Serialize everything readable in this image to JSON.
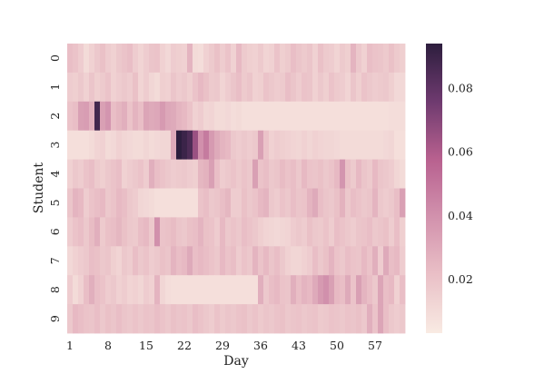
{
  "chart_data": {
    "type": "heatmap",
    "title": "",
    "xlabel": "Day",
    "ylabel": "Student",
    "x_tick_labels": [
      "1",
      "8",
      "15",
      "22",
      "29",
      "36",
      "43",
      "50",
      "57"
    ],
    "x_tick_days": [
      1,
      8,
      15,
      22,
      29,
      36,
      43,
      50,
      57
    ],
    "y_tick_labels": [
      "0",
      "1",
      "2",
      "3",
      "4",
      "5",
      "6",
      "7",
      "8",
      "9"
    ],
    "n_days": 62,
    "colorbar": {
      "tick_labels": [
        "0.02",
        "0.04",
        "0.06",
        "0.08"
      ],
      "tick_values": [
        0.02,
        0.04,
        0.06,
        0.08
      ],
      "range": [
        0.003,
        0.094
      ],
      "position": "right"
    },
    "color_low": "#f9ebe3",
    "color_mid": "#b8618f",
    "color_high": "#2d1e3e",
    "values": [
      [
        0.022,
        0.02,
        0.016,
        0.01,
        0.014,
        0.018,
        0.021,
        0.016,
        0.014,
        0.018,
        0.02,
        0.022,
        0.016,
        0.013,
        0.016,
        0.019,
        0.02,
        0.014,
        0.011,
        0.016,
        0.015,
        0.014,
        0.026,
        0.01,
        0.009,
        0.014,
        0.017,
        0.021,
        0.016,
        0.02,
        0.014,
        0.024,
        0.017,
        0.015,
        0.014,
        0.017,
        0.013,
        0.014,
        0.02,
        0.015,
        0.017,
        0.022,
        0.019,
        0.017,
        0.019,
        0.014,
        0.021,
        0.017,
        0.016,
        0.013,
        0.017,
        0.015,
        0.026,
        0.018,
        0.014,
        0.022,
        0.02,
        0.019,
        0.017,
        0.021,
        0.017,
        0.015
      ],
      [
        0.016,
        0.015,
        0.018,
        0.014,
        0.019,
        0.015,
        0.017,
        0.02,
        0.014,
        0.016,
        0.018,
        0.016,
        0.021,
        0.013,
        0.016,
        0.012,
        0.01,
        0.015,
        0.014,
        0.019,
        0.016,
        0.018,
        0.015,
        0.02,
        0.024,
        0.021,
        0.017,
        0.018,
        0.013,
        0.016,
        0.019,
        0.022,
        0.017,
        0.019,
        0.014,
        0.015,
        0.02,
        0.018,
        0.016,
        0.017,
        0.022,
        0.019,
        0.016,
        0.02,
        0.019,
        0.014,
        0.018,
        0.015,
        0.02,
        0.017,
        0.016,
        0.013,
        0.019,
        0.015,
        0.02,
        0.018,
        0.016,
        0.017,
        0.018,
        0.015,
        0.011,
        0.011
      ],
      [
        0.02,
        0.022,
        0.034,
        0.035,
        0.028,
        0.088,
        0.034,
        0.038,
        0.022,
        0.025,
        0.028,
        0.02,
        0.026,
        0.022,
        0.032,
        0.03,
        0.031,
        0.036,
        0.031,
        0.03,
        0.026,
        0.024,
        0.02,
        0.014,
        0.016,
        0.012,
        0.013,
        0.01,
        0.01,
        0.011,
        0.009,
        0.01,
        0.008,
        0.008,
        0.008,
        0.008,
        0.008,
        0.008,
        0.008,
        0.008,
        0.008,
        0.008,
        0.008,
        0.008,
        0.008,
        0.008,
        0.008,
        0.008,
        0.008,
        0.008,
        0.008,
        0.008,
        0.008,
        0.008,
        0.008,
        0.008,
        0.008,
        0.008,
        0.008,
        0.009,
        0.009,
        0.009
      ],
      [
        0.008,
        0.008,
        0.008,
        0.008,
        0.01,
        0.013,
        0.014,
        0.01,
        0.011,
        0.014,
        0.012,
        0.011,
        0.01,
        0.01,
        0.012,
        0.01,
        0.011,
        0.012,
        0.012,
        0.03,
        0.094,
        0.09,
        0.085,
        0.065,
        0.04,
        0.048,
        0.036,
        0.03,
        0.026,
        0.024,
        0.018,
        0.016,
        0.018,
        0.016,
        0.018,
        0.034,
        0.02,
        0.014,
        0.016,
        0.015,
        0.014,
        0.013,
        0.012,
        0.014,
        0.012,
        0.014,
        0.013,
        0.012,
        0.012,
        0.011,
        0.01,
        0.01,
        0.01,
        0.01,
        0.01,
        0.01,
        0.01,
        0.01,
        0.011,
        0.012,
        0.008,
        0.008
      ],
      [
        0.014,
        0.018,
        0.016,
        0.02,
        0.022,
        0.017,
        0.015,
        0.018,
        0.02,
        0.022,
        0.014,
        0.016,
        0.018,
        0.02,
        0.016,
        0.028,
        0.022,
        0.02,
        0.018,
        0.016,
        0.017,
        0.018,
        0.016,
        0.015,
        0.025,
        0.027,
        0.034,
        0.022,
        0.016,
        0.018,
        0.02,
        0.017,
        0.02,
        0.018,
        0.034,
        0.02,
        0.022,
        0.018,
        0.019,
        0.023,
        0.02,
        0.022,
        0.018,
        0.024,
        0.02,
        0.019,
        0.021,
        0.018,
        0.02,
        0.024,
        0.038,
        0.021,
        0.017,
        0.024,
        0.019,
        0.017,
        0.024,
        0.019,
        0.018,
        0.016,
        0.012,
        0.01
      ],
      [
        0.019,
        0.026,
        0.024,
        0.016,
        0.02,
        0.022,
        0.024,
        0.018,
        0.02,
        0.024,
        0.022,
        0.018,
        0.016,
        0.012,
        0.011,
        0.01,
        0.008,
        0.008,
        0.008,
        0.008,
        0.008,
        0.008,
        0.008,
        0.008,
        0.02,
        0.022,
        0.018,
        0.019,
        0.022,
        0.025,
        0.016,
        0.016,
        0.021,
        0.018,
        0.02,
        0.024,
        0.026,
        0.018,
        0.016,
        0.02,
        0.018,
        0.022,
        0.019,
        0.02,
        0.026,
        0.03,
        0.022,
        0.019,
        0.018,
        0.021,
        0.027,
        0.018,
        0.022,
        0.02,
        0.018,
        0.019,
        0.026,
        0.018,
        0.016,
        0.018,
        0.022,
        0.034
      ],
      [
        0.016,
        0.02,
        0.022,
        0.018,
        0.023,
        0.028,
        0.017,
        0.021,
        0.022,
        0.025,
        0.021,
        0.018,
        0.017,
        0.022,
        0.024,
        0.018,
        0.04,
        0.02,
        0.021,
        0.023,
        0.019,
        0.018,
        0.021,
        0.022,
        0.026,
        0.021,
        0.02,
        0.016,
        0.024,
        0.018,
        0.02,
        0.018,
        0.022,
        0.02,
        0.018,
        0.015,
        0.013,
        0.012,
        0.011,
        0.012,
        0.013,
        0.016,
        0.018,
        0.016,
        0.021,
        0.018,
        0.017,
        0.02,
        0.016,
        0.022,
        0.02,
        0.018,
        0.016,
        0.019,
        0.02,
        0.022,
        0.018,
        0.019,
        0.021,
        0.016,
        0.022,
        0.015
      ],
      [
        0.011,
        0.014,
        0.016,
        0.018,
        0.022,
        0.021,
        0.018,
        0.019,
        0.015,
        0.013,
        0.018,
        0.016,
        0.022,
        0.018,
        0.02,
        0.016,
        0.018,
        0.021,
        0.019,
        0.026,
        0.022,
        0.024,
        0.03,
        0.022,
        0.024,
        0.022,
        0.02,
        0.018,
        0.024,
        0.02,
        0.022,
        0.016,
        0.02,
        0.018,
        0.026,
        0.02,
        0.024,
        0.019,
        0.022,
        0.018,
        0.014,
        0.012,
        0.012,
        0.014,
        0.016,
        0.022,
        0.018,
        0.021,
        0.026,
        0.02,
        0.018,
        0.022,
        0.02,
        0.019,
        0.024,
        0.02,
        0.028,
        0.016,
        0.03,
        0.022,
        0.024,
        0.016
      ],
      [
        0.016,
        0.01,
        0.014,
        0.022,
        0.028,
        0.022,
        0.02,
        0.016,
        0.018,
        0.014,
        0.016,
        0.013,
        0.014,
        0.012,
        0.016,
        0.014,
        0.026,
        0.012,
        0.009,
        0.008,
        0.008,
        0.008,
        0.008,
        0.008,
        0.008,
        0.008,
        0.008,
        0.008,
        0.008,
        0.008,
        0.008,
        0.008,
        0.008,
        0.008,
        0.008,
        0.028,
        0.018,
        0.022,
        0.024,
        0.02,
        0.019,
        0.028,
        0.022,
        0.026,
        0.024,
        0.03,
        0.036,
        0.04,
        0.034,
        0.024,
        0.022,
        0.03,
        0.02,
        0.034,
        0.026,
        0.022,
        0.018,
        0.032,
        0.022,
        0.024,
        0.014,
        0.022
      ],
      [
        0.018,
        0.024,
        0.022,
        0.02,
        0.019,
        0.022,
        0.018,
        0.021,
        0.019,
        0.022,
        0.019,
        0.018,
        0.02,
        0.018,
        0.02,
        0.019,
        0.022,
        0.02,
        0.018,
        0.021,
        0.019,
        0.02,
        0.018,
        0.022,
        0.02,
        0.018,
        0.016,
        0.02,
        0.017,
        0.019,
        0.018,
        0.02,
        0.021,
        0.018,
        0.02,
        0.017,
        0.019,
        0.018,
        0.02,
        0.021,
        0.018,
        0.019,
        0.02,
        0.018,
        0.019,
        0.02,
        0.017,
        0.018,
        0.02,
        0.019,
        0.018,
        0.02,
        0.019,
        0.021,
        0.018,
        0.028,
        0.02,
        0.032,
        0.022,
        0.018,
        0.016,
        0.018
      ]
    ]
  }
}
